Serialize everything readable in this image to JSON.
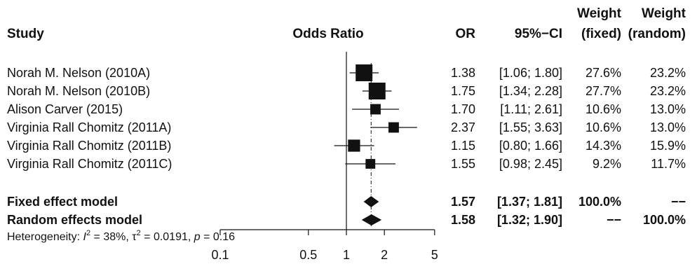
{
  "chart_data": {
    "type": "forest",
    "headers": {
      "study": "Study",
      "plot": "Odds Ratio",
      "or": "OR",
      "ci": "95%−CI",
      "weight": "Weight",
      "fixed": "(fixed)",
      "random": "(random)"
    },
    "scale": "log",
    "xlim": [
      0.1,
      5
    ],
    "ticks": [
      {
        "value": 0.1,
        "label": "0.1"
      },
      {
        "value": 0.5,
        "label": "0.5"
      },
      {
        "value": 1,
        "label": "1"
      },
      {
        "value": 2,
        "label": "2"
      },
      {
        "value": 5,
        "label": "5"
      }
    ],
    "studies": [
      {
        "label": "Norah M. Nelson  (2010A)",
        "or": 1.38,
        "lo": 1.06,
        "hi": 1.8,
        "or_text": "1.38",
        "ci_text": "[1.06; 1.80]",
        "wf_text": "27.6%",
        "wr_text": "23.2%",
        "weight": 27.6
      },
      {
        "label": "Norah M. Nelson  (2010B)",
        "or": 1.75,
        "lo": 1.34,
        "hi": 2.28,
        "or_text": "1.75",
        "ci_text": "[1.34; 2.28]",
        "wf_text": "27.7%",
        "wr_text": "23.2%",
        "weight": 27.7
      },
      {
        "label": "Alison Carver (2015)",
        "or": 1.7,
        "lo": 1.11,
        "hi": 2.61,
        "or_text": "1.70",
        "ci_text": "[1.11; 2.61]",
        "wf_text": "10.6%",
        "wr_text": "13.0%",
        "weight": 10.6
      },
      {
        "label": "Virginia Rall Chomitz (2011A)",
        "or": 2.37,
        "lo": 1.55,
        "hi": 3.63,
        "or_text": "2.37",
        "ci_text": "[1.55; 3.63]",
        "wf_text": "10.6%",
        "wr_text": "13.0%",
        "weight": 10.6
      },
      {
        "label": "Virginia Rall Chomitz (2011B)",
        "or": 1.15,
        "lo": 0.8,
        "hi": 1.66,
        "or_text": "1.15",
        "ci_text": "[0.80; 1.66]",
        "wf_text": "14.3%",
        "wr_text": "15.9%",
        "weight": 14.3
      },
      {
        "label": "Virginia Rall Chomitz (2011C)",
        "or": 1.55,
        "lo": 0.98,
        "hi": 2.45,
        "or_text": "1.55",
        "ci_text": "[0.98; 2.45]",
        "wf_text": "9.2%",
        "wr_text": "11.7%",
        "weight": 9.2
      }
    ],
    "summaries": [
      {
        "label": "Fixed effect model",
        "or": 1.57,
        "lo": 1.37,
        "hi": 1.81,
        "or_text": "1.57",
        "ci_text": "[1.37; 1.81]",
        "wf_text": "100.0%",
        "wr_text": "−−"
      },
      {
        "label": "Random effects model",
        "or": 1.58,
        "lo": 1.32,
        "hi": 1.9,
        "or_text": "1.58",
        "ci_text": "[1.32; 1.90]",
        "wf_text": "−−",
        "wr_text": "100.0%"
      }
    ],
    "heterogeneity": {
      "prefix": "Heterogeneity: ",
      "i_symbol": "I",
      "i_value": " = 38%, ",
      "tau_symbol": "τ",
      "tau_value": " = 0.0191, ",
      "p_symbol": "p",
      "p_value": " = 0.16",
      "sup": "2"
    },
    "colors": {
      "ink": "#111111",
      "background": "#ffffff"
    }
  }
}
